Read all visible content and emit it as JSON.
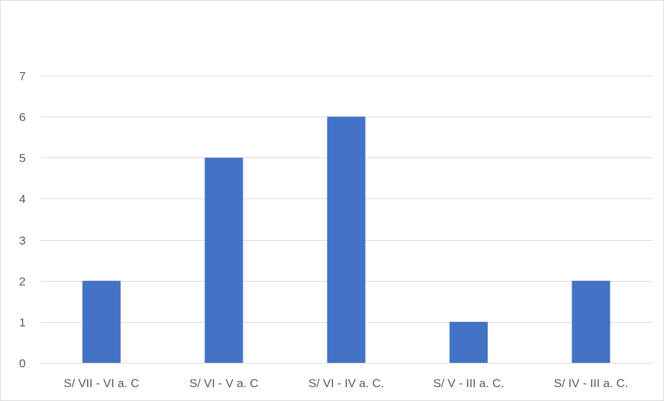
{
  "chart_data": {
    "type": "bar",
    "title": "",
    "xlabel": "",
    "ylabel": "",
    "categories": [
      "S/ VII - VI a. C",
      "S/ VI - V a. C",
      "S/ VI - IV a. C.",
      "S/ V - III a. C.",
      "S/ IV - III a. C."
    ],
    "values": [
      2,
      5,
      6,
      1,
      2
    ],
    "ylim": [
      0,
      7
    ],
    "yticks": [
      0,
      1,
      2,
      3,
      4,
      5,
      6,
      7
    ],
    "grid": true,
    "legend": "none",
    "colors": {
      "bar": "#4472c4",
      "grid": "#d9d9d9",
      "text": "#595959",
      "border": "#d9d9d9"
    }
  }
}
